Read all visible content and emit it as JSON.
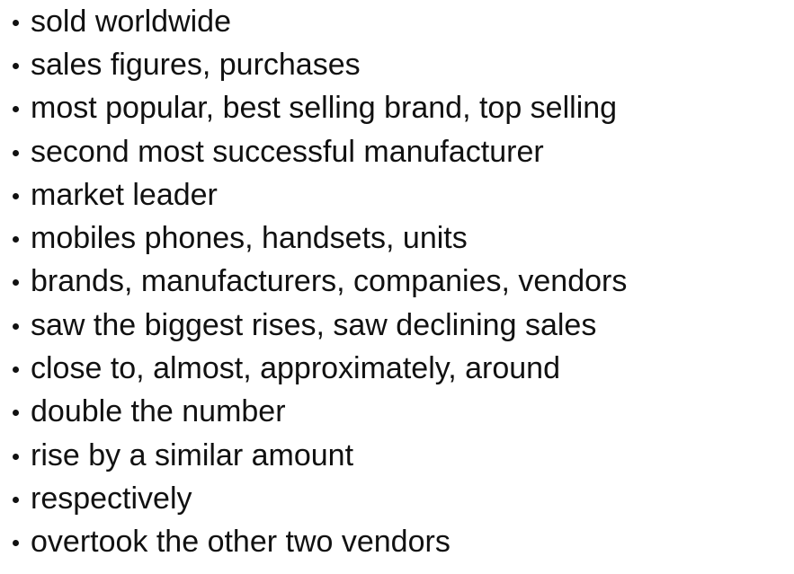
{
  "items": [
    "sold worldwide",
    "sales figures, purchases",
    "most popular, best selling brand, top selling",
    "second most successful manufacturer",
    "market leader",
    "mobiles phones, handsets, units",
    "brands, manufacturers, companies, vendors",
    "saw the biggest rises, saw declining sales",
    "close to, almost, approximately, around",
    "double the number",
    "rise by a similar amount",
    "respectively",
    "overtook the other two vendors"
  ]
}
